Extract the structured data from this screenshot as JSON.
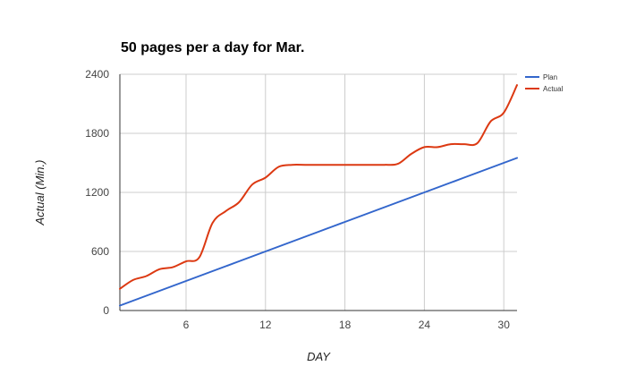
{
  "chart_data": {
    "type": "line",
    "title": "50 pages per a day for Mar.",
    "xlabel": "DAY",
    "ylabel": "Actual (Min.)",
    "xlim": [
      1,
      31
    ],
    "ylim": [
      0,
      2400
    ],
    "x_ticks": [
      6,
      12,
      18,
      24,
      30
    ],
    "y_ticks": [
      0,
      600,
      1200,
      1800,
      2400
    ],
    "grid": true,
    "legend_position": "right",
    "x": [
      1,
      2,
      3,
      4,
      5,
      6,
      7,
      8,
      9,
      10,
      11,
      12,
      13,
      14,
      15,
      16,
      17,
      18,
      19,
      20,
      21,
      22,
      23,
      24,
      25,
      26,
      27,
      28,
      29,
      30,
      31
    ],
    "series": [
      {
        "name": "Plan",
        "color": "#3366cc",
        "values": [
          50,
          100,
          150,
          200,
          250,
          300,
          350,
          400,
          450,
          500,
          550,
          600,
          650,
          700,
          750,
          800,
          850,
          900,
          950,
          1000,
          1050,
          1100,
          1150,
          1200,
          1250,
          1300,
          1350,
          1400,
          1450,
          1500,
          1550
        ]
      },
      {
        "name": "Actual",
        "color": "#dc3912",
        "values": [
          220,
          310,
          350,
          420,
          440,
          500,
          540,
          890,
          1010,
          1100,
          1280,
          1350,
          1460,
          1480,
          1480,
          1480,
          1480,
          1480,
          1480,
          1480,
          1480,
          1490,
          1590,
          1660,
          1660,
          1690,
          1690,
          1700,
          1920,
          2010,
          2290
        ]
      }
    ]
  }
}
